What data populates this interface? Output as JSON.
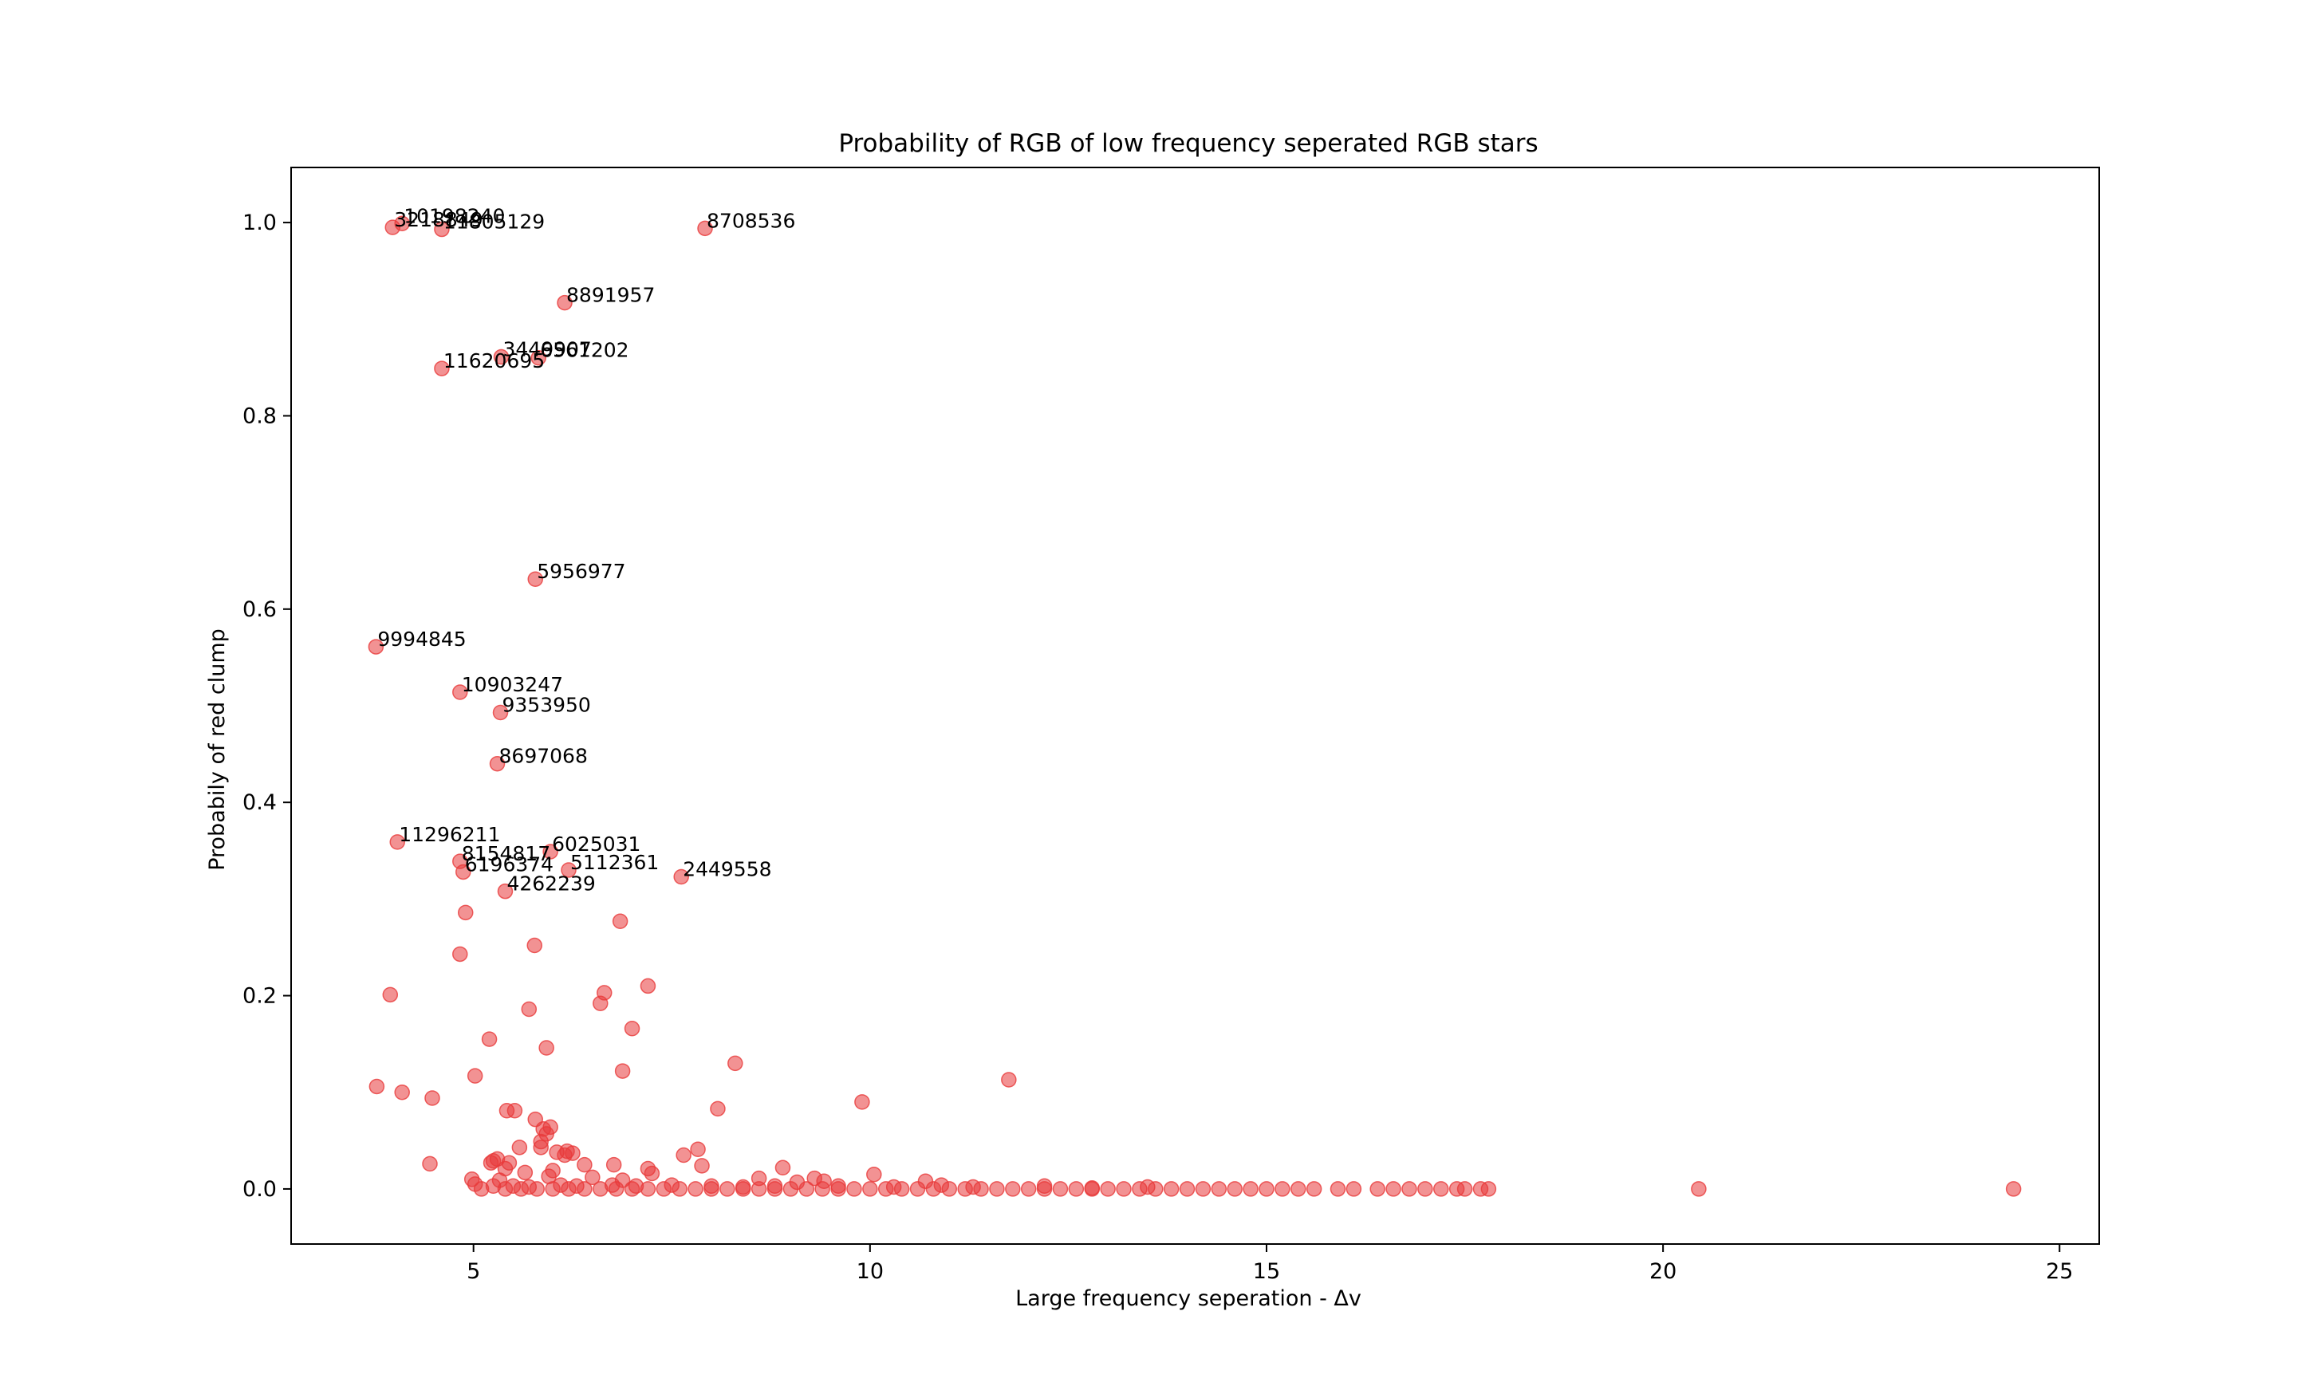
{
  "chart_data": {
    "type": "scatter",
    "title": "Probability of RGB of low frequency seperated RGB stars",
    "xlabel": "Large frequency seperation - Δv",
    "ylabel": "Probabily of red clump",
    "xlim": [
      2.7,
      25.5
    ],
    "ylim": [
      -0.057,
      1.057
    ],
    "xticks": [
      5,
      10,
      15,
      20,
      25
    ],
    "yticks": [
      0.0,
      0.2,
      0.4,
      0.6,
      0.8,
      1.0
    ],
    "xtick_labels": [
      "5",
      "10",
      "15",
      "20",
      "25"
    ],
    "ytick_labels": [
      "0.0",
      "0.2",
      "0.4",
      "0.6",
      "0.8",
      "1.0"
    ],
    "grid": false,
    "marker_color": "#e8393a",
    "marker_alpha": 0.55,
    "labeled_points": [
      {
        "label": "3218849",
        "x": 3.98,
        "y": 0.995
      },
      {
        "label": "10198240",
        "x": 4.1,
        "y": 0.999
      },
      {
        "label": "11805129",
        "x": 4.6,
        "y": 0.993
      },
      {
        "label": "8708536",
        "x": 7.92,
        "y": 0.994
      },
      {
        "label": "8891957",
        "x": 6.15,
        "y": 0.917
      },
      {
        "label": "3449907",
        "x": 5.35,
        "y": 0.861
      },
      {
        "label": "6561202",
        "x": 5.82,
        "y": 0.86
      },
      {
        "label": "11620695",
        "x": 4.6,
        "y": 0.849
      },
      {
        "label": "5956977",
        "x": 5.78,
        "y": 0.631
      },
      {
        "label": "9994845",
        "x": 3.77,
        "y": 0.561
      },
      {
        "label": "10903247",
        "x": 4.83,
        "y": 0.514
      },
      {
        "label": "9353950",
        "x": 5.34,
        "y": 0.493
      },
      {
        "label": "8697068",
        "x": 5.3,
        "y": 0.44
      },
      {
        "label": "11296211",
        "x": 4.04,
        "y": 0.359
      },
      {
        "label": "6025031",
        "x": 5.97,
        "y": 0.349
      },
      {
        "label": "8154817",
        "x": 4.83,
        "y": 0.339
      },
      {
        "label": "5112361",
        "x": 6.2,
        "y": 0.33
      },
      {
        "label": "6196374",
        "x": 4.87,
        "y": 0.328
      },
      {
        "label": "2449558",
        "x": 7.62,
        "y": 0.323
      },
      {
        "label": "4262239",
        "x": 5.4,
        "y": 0.308
      }
    ],
    "points": [
      [
        4.9,
        0.286
      ],
      [
        6.85,
        0.277
      ],
      [
        4.83,
        0.243
      ],
      [
        5.77,
        0.252
      ],
      [
        3.95,
        0.201
      ],
      [
        7.2,
        0.21
      ],
      [
        6.65,
        0.203
      ],
      [
        6.6,
        0.192
      ],
      [
        5.7,
        0.186
      ],
      [
        7.0,
        0.166
      ],
      [
        5.2,
        0.155
      ],
      [
        5.92,
        0.146
      ],
      [
        8.3,
        0.13
      ],
      [
        6.88,
        0.122
      ],
      [
        5.02,
        0.117
      ],
      [
        11.75,
        0.113
      ],
      [
        3.78,
        0.106
      ],
      [
        4.1,
        0.1
      ],
      [
        4.48,
        0.094
      ],
      [
        9.9,
        0.09
      ],
      [
        8.08,
        0.083
      ],
      [
        5.42,
        0.081
      ],
      [
        5.52,
        0.081
      ],
      [
        5.78,
        0.072
      ],
      [
        5.97,
        0.064
      ],
      [
        5.88,
        0.062
      ],
      [
        5.92,
        0.057
      ],
      [
        5.85,
        0.049
      ],
      [
        5.58,
        0.043
      ],
      [
        5.85,
        0.043
      ],
      [
        7.83,
        0.041
      ],
      [
        6.05,
        0.038
      ],
      [
        6.18,
        0.039
      ],
      [
        6.25,
        0.037
      ],
      [
        6.15,
        0.035
      ],
      [
        7.65,
        0.035
      ],
      [
        5.3,
        0.031
      ],
      [
        5.25,
        0.029
      ],
      [
        5.22,
        0.027
      ],
      [
        4.45,
        0.026
      ],
      [
        5.45,
        0.027
      ],
      [
        6.4,
        0.025
      ],
      [
        6.77,
        0.025
      ],
      [
        7.88,
        0.024
      ],
      [
        8.9,
        0.022
      ],
      [
        5.4,
        0.021
      ],
      [
        7.2,
        0.021
      ],
      [
        6.0,
        0.019
      ],
      [
        5.65,
        0.017
      ],
      [
        7.25,
        0.016
      ],
      [
        10.05,
        0.015
      ],
      [
        5.95,
        0.013
      ],
      [
        6.5,
        0.012
      ],
      [
        8.6,
        0.011
      ],
      [
        4.98,
        0.01
      ],
      [
        5.33,
        0.009
      ],
      [
        6.88,
        0.009
      ],
      [
        9.3,
        0.011
      ],
      [
        9.42,
        0.008
      ],
      [
        9.08,
        0.007
      ],
      [
        10.7,
        0.008
      ],
      [
        5.02,
        0.005
      ],
      [
        5.25,
        0.003
      ],
      [
        5.5,
        0.003
      ],
      [
        5.7,
        0.002
      ],
      [
        6.1,
        0.004
      ],
      [
        6.3,
        0.003
      ],
      [
        6.75,
        0.004
      ],
      [
        7.05,
        0.003
      ],
      [
        7.5,
        0.004
      ],
      [
        8.0,
        0.003
      ],
      [
        8.4,
        0.002
      ],
      [
        8.8,
        0.003
      ],
      [
        9.6,
        0.003
      ],
      [
        10.3,
        0.002
      ],
      [
        10.9,
        0.004
      ],
      [
        11.3,
        0.002
      ],
      [
        12.2,
        0.003
      ],
      [
        12.8,
        0.001
      ],
      [
        13.5,
        0.002
      ],
      [
        5.1,
        0.0
      ],
      [
        5.4,
        0.0
      ],
      [
        5.6,
        0.0
      ],
      [
        5.8,
        0.0
      ],
      [
        6.0,
        0.0
      ],
      [
        6.2,
        0.0
      ],
      [
        6.4,
        0.0
      ],
      [
        6.6,
        0.0
      ],
      [
        6.8,
        0.0
      ],
      [
        7.0,
        0.0
      ],
      [
        7.2,
        0.0
      ],
      [
        7.4,
        0.0
      ],
      [
        7.6,
        0.0
      ],
      [
        7.8,
        0.0
      ],
      [
        8.0,
        0.0
      ],
      [
        8.2,
        0.0
      ],
      [
        8.4,
        0.0
      ],
      [
        8.6,
        0.0
      ],
      [
        8.8,
        0.0
      ],
      [
        9.0,
        0.0
      ],
      [
        9.2,
        0.0
      ],
      [
        9.4,
        0.0
      ],
      [
        9.6,
        0.0
      ],
      [
        9.8,
        0.0
      ],
      [
        10.0,
        0.0
      ],
      [
        10.2,
        0.0
      ],
      [
        10.4,
        0.0
      ],
      [
        10.6,
        0.0
      ],
      [
        10.8,
        0.0
      ],
      [
        11.0,
        0.0
      ],
      [
        11.2,
        0.0
      ],
      [
        11.4,
        0.0
      ],
      [
        11.6,
        0.0
      ],
      [
        11.8,
        0.0
      ],
      [
        12.0,
        0.0
      ],
      [
        12.2,
        0.0
      ],
      [
        12.4,
        0.0
      ],
      [
        12.6,
        0.0
      ],
      [
        12.8,
        0.0
      ],
      [
        13.0,
        0.0
      ],
      [
        13.2,
        0.0
      ],
      [
        13.4,
        0.0
      ],
      [
        13.6,
        0.0
      ],
      [
        13.8,
        0.0
      ],
      [
        14.0,
        0.0
      ],
      [
        14.2,
        0.0
      ],
      [
        14.4,
        0.0
      ],
      [
        14.6,
        0.0
      ],
      [
        14.8,
        0.0
      ],
      [
        15.0,
        0.0
      ],
      [
        15.2,
        0.0
      ],
      [
        15.4,
        0.0
      ],
      [
        15.6,
        0.0
      ],
      [
        15.9,
        0.0
      ],
      [
        16.1,
        0.0
      ],
      [
        16.4,
        0.0
      ],
      [
        16.6,
        0.0
      ],
      [
        16.8,
        0.0
      ],
      [
        17.0,
        0.0
      ],
      [
        17.2,
        0.0
      ],
      [
        17.4,
        0.0
      ],
      [
        17.5,
        0.0
      ],
      [
        17.7,
        0.0
      ],
      [
        17.8,
        0.0
      ],
      [
        20.45,
        0.0
      ],
      [
        24.42,
        0.0
      ]
    ]
  }
}
